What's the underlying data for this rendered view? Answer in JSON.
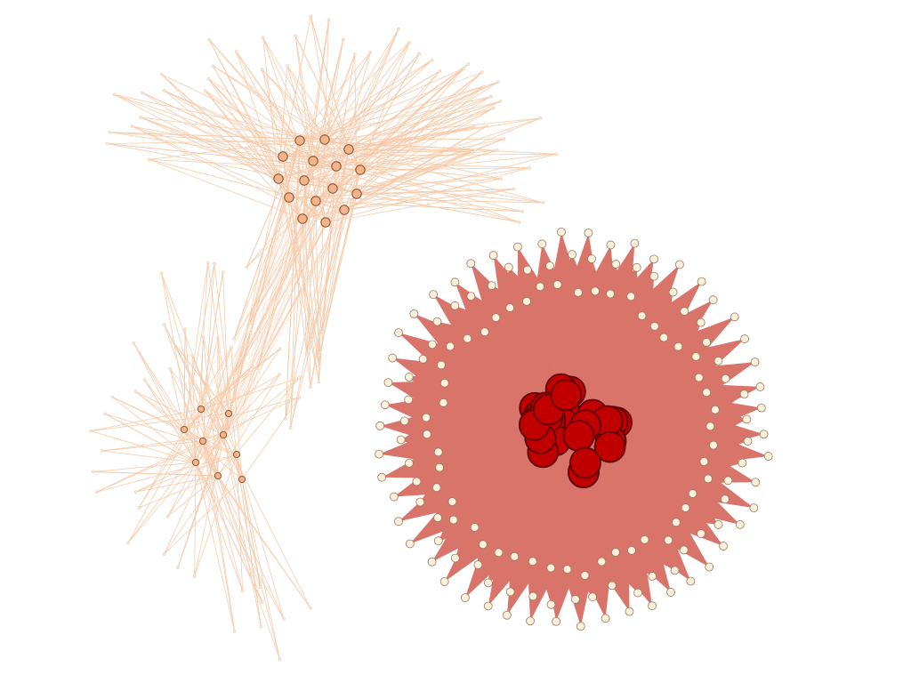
{
  "network": {
    "background_color": "#ffffff",
    "clusters": [
      {
        "id": "upper-left-cluster",
        "edge_color": "#f6c9a8",
        "core_node_fill": "#f2b48a",
        "core_node_stroke": "#8a4a2a",
        "outer_node_fill": "#fce8d8",
        "core_node_count": 18,
        "outer_node_count": 44
      },
      {
        "id": "lower-left-cluster",
        "edge_color": "#f6c9a8",
        "core_node_fill": "#f2b48a",
        "core_node_stroke": "#8a4a2a",
        "outer_node_fill": "#fce8d8",
        "core_node_count": 10,
        "outer_node_count": 28
      },
      {
        "id": "right-radial-cluster",
        "edge_color": "#d9746a",
        "core_node_fill": "#c00000",
        "core_node_stroke": "#5a0000",
        "outer_node_fill": "#fdf0dc",
        "outer_node_stroke": "#9a7a5a",
        "core_node_count": 30,
        "outer_node_count": 150
      }
    ]
  }
}
